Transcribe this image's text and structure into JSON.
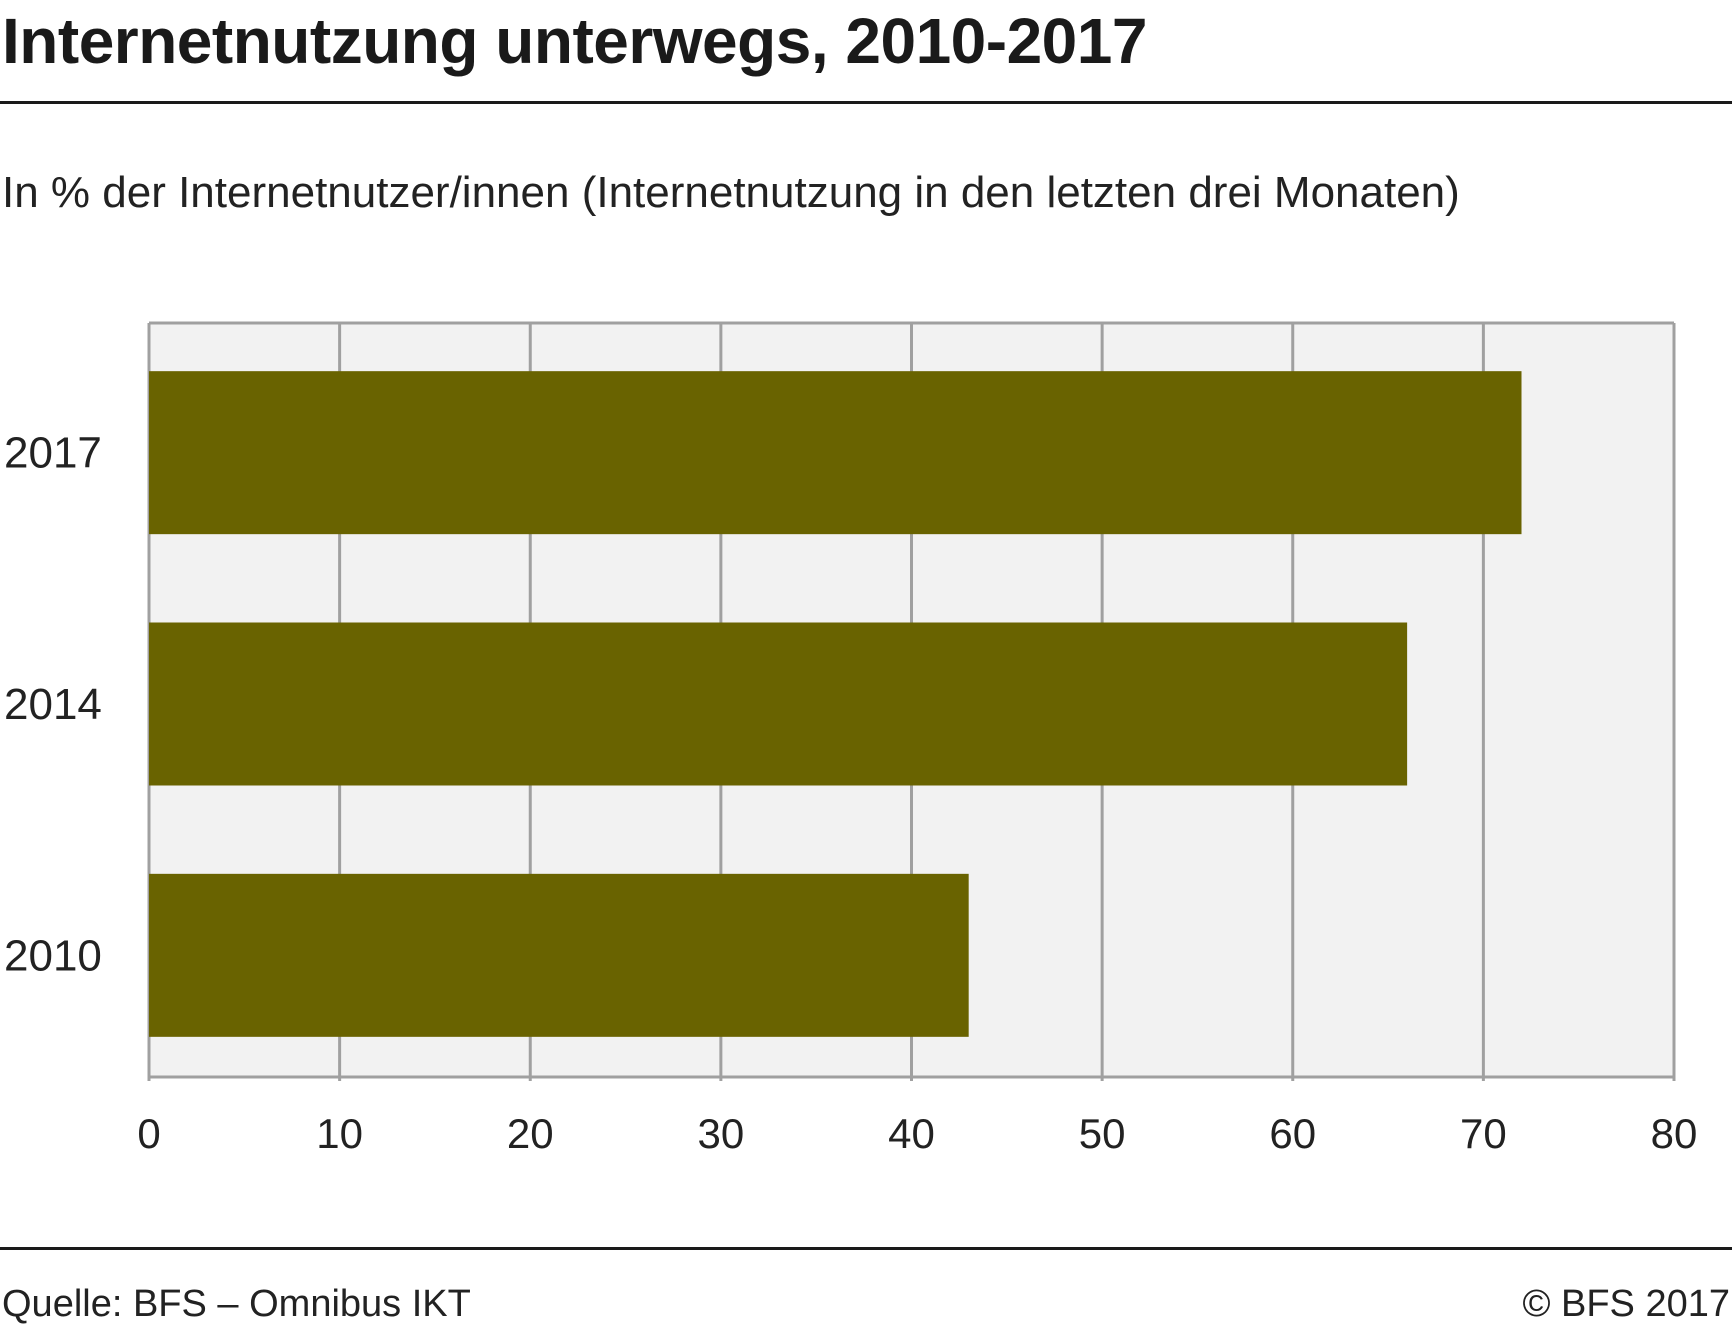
{
  "title": "Internetnutzung unterwegs, 2010-2017",
  "subtitle": "In % der Internetnutzer/innen (Internetnutzung in den letzten drei Monaten)",
  "footer": {
    "source": "Quelle: BFS – Omnibus IKT",
    "copyright": "© BFS 2017"
  },
  "chart_data": {
    "type": "bar",
    "orientation": "horizontal",
    "categories": [
      "2017",
      "2014",
      "2010"
    ],
    "values": [
      72,
      66,
      43
    ],
    "xlim": [
      0,
      80
    ],
    "xticks": [
      "0",
      "10",
      "20",
      "30",
      "40",
      "50",
      "60",
      "70",
      "80"
    ],
    "grid": "vertical",
    "bar_color": "#696300",
    "plot_background": "#f2f2f2",
    "grid_color": "#a0a0a0"
  }
}
